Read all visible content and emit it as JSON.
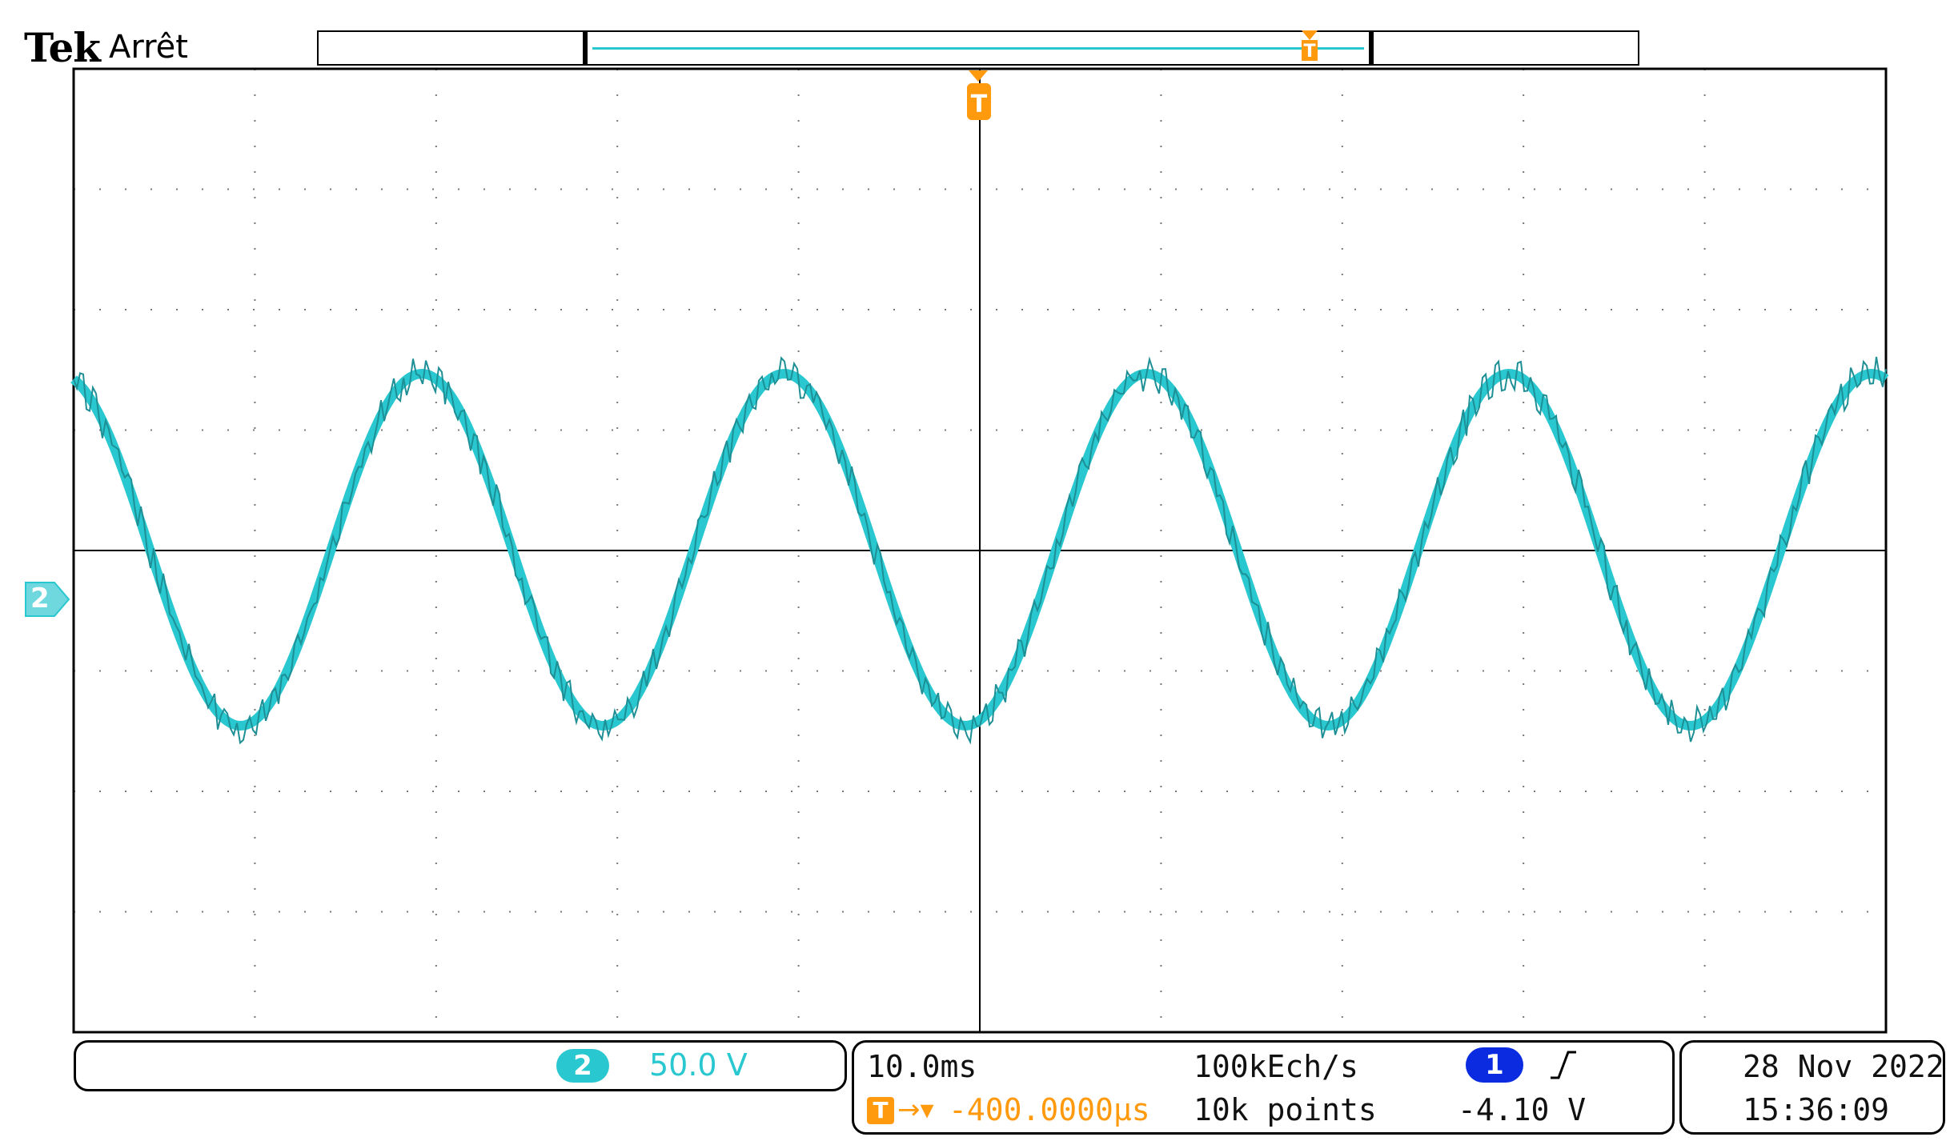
{
  "header": {
    "brand": "Tek",
    "status": "Arrêt"
  },
  "display": {
    "trace_color": "#29c7cf",
    "trigger_color": "#ff9a0e",
    "channel1_color": "#0a2be0",
    "waveform": {
      "shape": "sine",
      "cycles_visible": 5,
      "noise": true
    },
    "trigger_marker_label": "T",
    "channel_marker_label": "2"
  },
  "channel_panel": {
    "channel_badge": "2",
    "volts_per_div": "50.0 V"
  },
  "timebase_panel": {
    "time_per_div": "10.0ms",
    "trigger_position": "-400.0000µs",
    "sample_rate": "100kEch/s",
    "record_length": "10k points",
    "trigger_source_badge": "1",
    "trigger_slope_icon": "rising-edge-icon",
    "trigger_level": "-4.10 V"
  },
  "datetime_panel": {
    "date": "28 Nov 2022",
    "time": "15:36:09"
  }
}
